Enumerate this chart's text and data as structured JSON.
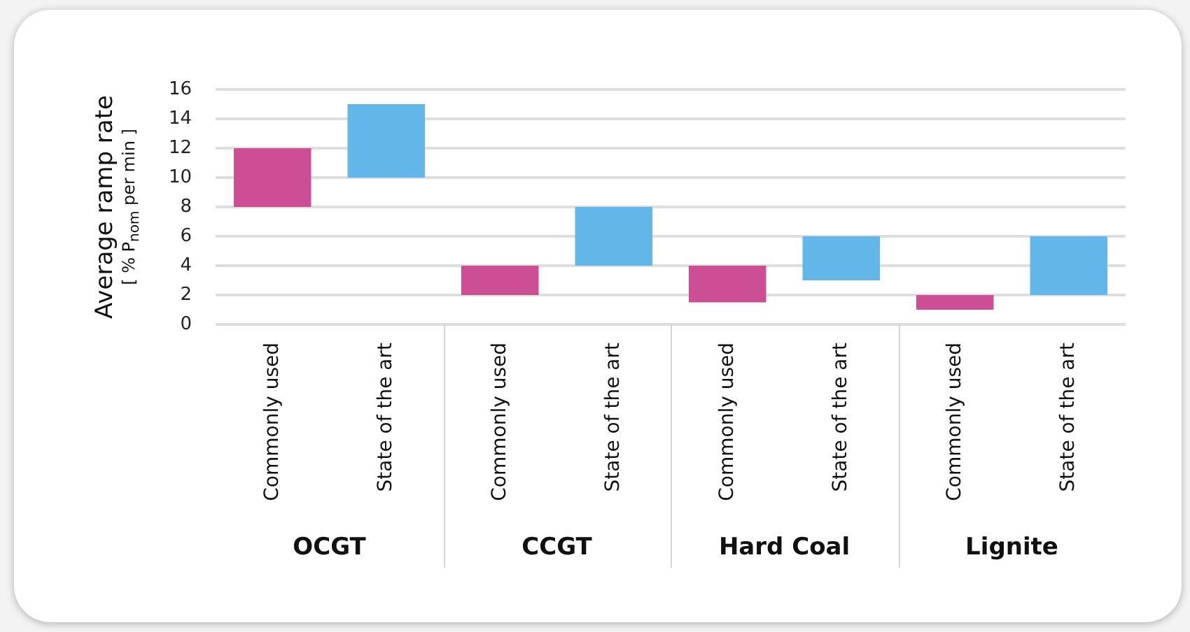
{
  "chart_data": {
    "type": "bar",
    "ylabel": "Average ramp rate\n[ % P$_{nom}$ per min ]",
    "categories": [
      "Commonly used",
      "State of the art",
      "Commonly used",
      "State of the art",
      "Commonly used",
      "State of the art",
      "Commonly used",
      "State of the art"
    ],
    "values": [
      4,
      5,
      2,
      4,
      2.5,
      3,
      1,
      4
    ],
    "base": [
      8,
      10,
      2,
      4,
      1.5,
      3,
      1,
      2
    ],
    "colors": [
      "#cc4f96",
      "#62b6e8",
      "#cc4f96",
      "#62b6e8",
      "#cc4f96",
      "#62b6e8",
      "#cc4f96",
      "#62b6e8"
    ],
    "ylim": [
      0,
      16
    ],
    "yticks": [
      0,
      2,
      4,
      6,
      8,
      10,
      12,
      14,
      16
    ],
    "grid": "y",
    "legend": false,
    "annotations": [
      "OCGT",
      "CCGT",
      "Hard Coal",
      "Lignite"
    ]
  }
}
